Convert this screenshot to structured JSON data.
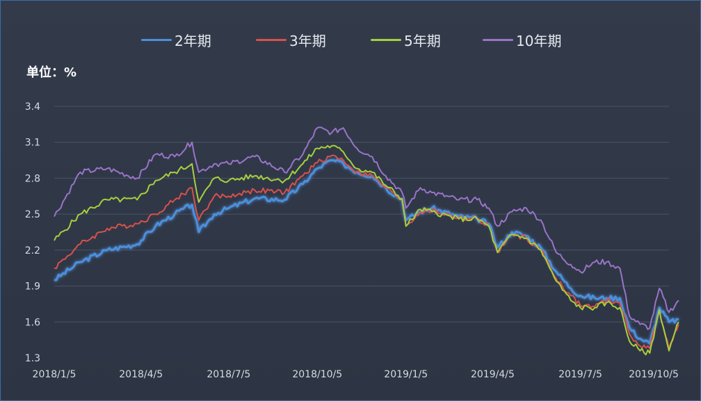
{
  "chart_data": {
    "type": "line",
    "title": "",
    "xlabel": "",
    "ylabel": "单位：%",
    "ylim": [
      1.3,
      3.4
    ],
    "yticks": [
      "3.4",
      "3.1",
      "2.8",
      "2.5",
      "2.2",
      "1.9",
      "1.6",
      "1.3"
    ],
    "x_ticks": [
      "2018/1/5",
      "2018/4/5",
      "2018/7/5",
      "2018/10/5",
      "2019/1/5",
      "2019/4/5",
      "2019/7/5",
      "2019/10/5"
    ],
    "legend_position": "top",
    "grid": true,
    "x_dates": [
      "2018/1/5",
      "2018/2/1",
      "2018/3/1",
      "2018/4/1",
      "2018/4/20",
      "2018/5/10",
      "2018/5/28",
      "2018/6/4",
      "2018/6/20",
      "2018/7/5",
      "2018/8/1",
      "2018/9/1",
      "2018/9/20",
      "2018/10/5",
      "2018/10/20",
      "2018/11/1",
      "2018/11/15",
      "2018/12/1",
      "2018/12/15",
      "2019/1/1",
      "2019/1/5",
      "2019/1/20",
      "2019/2/1",
      "2019/3/1",
      "2019/3/20",
      "2019/4/1",
      "2019/4/10",
      "2019/4/25",
      "2019/5/10",
      "2019/5/25",
      "2019/6/10",
      "2019/6/25",
      "2019/7/5",
      "2019/7/20",
      "2019/8/1",
      "2019/8/15",
      "2019/8/25",
      "2019/9/5",
      "2019/9/15",
      "2019/9/25",
      "2019/10/5",
      "2019/10/15"
    ],
    "series": [
      {
        "name": "2年期",
        "color": "#4e8fdb",
        "values": [
          1.95,
          2.1,
          2.2,
          2.25,
          2.4,
          2.5,
          2.58,
          2.35,
          2.5,
          2.55,
          2.63,
          2.62,
          2.75,
          2.88,
          2.95,
          2.92,
          2.85,
          2.82,
          2.72,
          2.62,
          2.45,
          2.52,
          2.55,
          2.48,
          2.46,
          2.42,
          2.22,
          2.35,
          2.32,
          2.22,
          2.02,
          1.88,
          1.82,
          1.8,
          1.8,
          1.8,
          1.55,
          1.46,
          1.42,
          1.72,
          1.6,
          1.62
        ]
      },
      {
        "name": "3年期",
        "color": "#d9514b",
        "values": [
          2.05,
          2.25,
          2.38,
          2.42,
          2.5,
          2.62,
          2.72,
          2.45,
          2.65,
          2.65,
          2.7,
          2.68,
          2.82,
          2.93,
          2.99,
          2.95,
          2.85,
          2.82,
          2.72,
          2.62,
          2.4,
          2.52,
          2.53,
          2.47,
          2.46,
          2.4,
          2.18,
          2.33,
          2.3,
          2.2,
          1.96,
          1.82,
          1.74,
          1.73,
          1.78,
          1.76,
          1.5,
          1.4,
          1.38,
          1.7,
          1.38,
          1.58
        ]
      },
      {
        "name": "5年期",
        "color": "#a8cf3c",
        "values": [
          2.28,
          2.5,
          2.62,
          2.62,
          2.78,
          2.85,
          2.92,
          2.6,
          2.8,
          2.78,
          2.82,
          2.78,
          2.92,
          3.05,
          3.07,
          3.02,
          2.88,
          2.85,
          2.74,
          2.63,
          2.4,
          2.54,
          2.52,
          2.46,
          2.46,
          2.4,
          2.18,
          2.33,
          2.3,
          2.2,
          1.94,
          1.78,
          1.72,
          1.72,
          1.76,
          1.72,
          1.44,
          1.36,
          1.34,
          1.7,
          1.36,
          1.6
        ]
      },
      {
        "name": "10年期",
        "color": "#9a74c8",
        "values": [
          2.48,
          2.85,
          2.88,
          2.8,
          3.0,
          2.98,
          3.1,
          2.85,
          2.92,
          2.92,
          2.98,
          2.85,
          3.0,
          3.22,
          3.18,
          3.22,
          3.05,
          2.98,
          2.82,
          2.68,
          2.55,
          2.72,
          2.68,
          2.62,
          2.62,
          2.55,
          2.4,
          2.52,
          2.55,
          2.45,
          2.18,
          2.08,
          2.02,
          2.1,
          2.1,
          2.05,
          1.65,
          1.58,
          1.55,
          1.88,
          1.68,
          1.78
        ]
      }
    ]
  }
}
